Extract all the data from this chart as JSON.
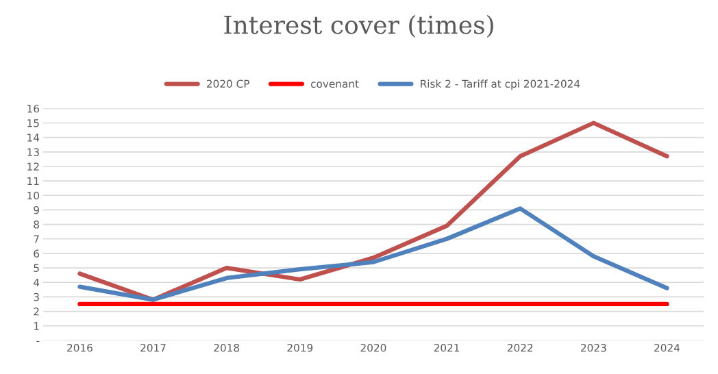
{
  "chart_data": {
    "type": "line",
    "title": "Interest cover (times)",
    "categories": [
      "2016",
      "2017",
      "2018",
      "2019",
      "2020",
      "2021",
      "2022",
      "2023",
      "2024"
    ],
    "series": [
      {
        "name": "2020 CP",
        "color": "#c0504d",
        "values": [
          4.6,
          2.8,
          5.0,
          4.2,
          5.7,
          7.9,
          12.7,
          15.0,
          12.7
        ]
      },
      {
        "name": "covenant",
        "color": "#ff0000",
        "values": [
          2.5,
          2.5,
          2.5,
          2.5,
          2.5,
          2.5,
          2.5,
          2.5,
          2.5
        ]
      },
      {
        "name": "Risk 2 - Tariff at cpi 2021-2024",
        "color": "#4f81bd",
        "values": [
          3.7,
          2.8,
          4.3,
          4.9,
          5.4,
          7.0,
          9.1,
          5.8,
          3.6
        ]
      }
    ],
    "ylim": [
      0,
      16
    ],
    "yticks": [
      {
        "value": 0,
        "label": "-"
      },
      1,
      2,
      3,
      4,
      5,
      6,
      7,
      8,
      9,
      10,
      11,
      12,
      13,
      14,
      15,
      16
    ],
    "grid": "y",
    "legend": "top",
    "marker": "none",
    "line_style": "solid"
  }
}
